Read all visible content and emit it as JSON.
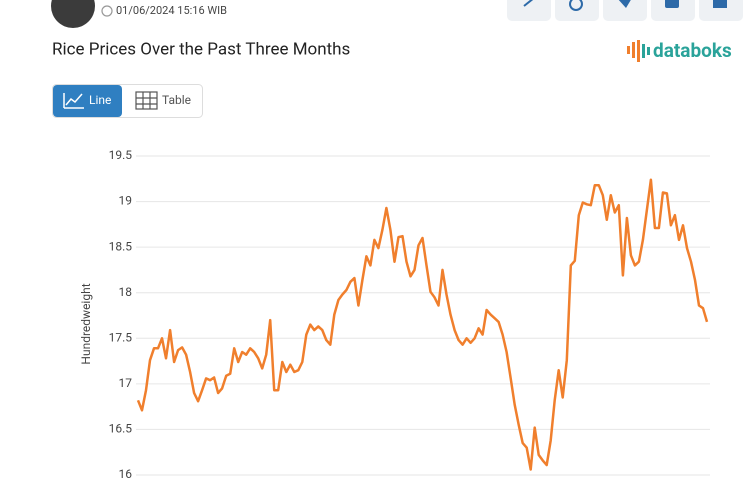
{
  "header": {
    "date": "01/06/2024 15:16 WIB"
  },
  "tabs": [
    "Line",
    "Table"
  ],
  "brand": "databoks",
  "chart_data": {
    "type": "line",
    "title": "Rice Prices Over the Past Three Months",
    "y_label": "Hundredweight",
    "color": "#f07f2d",
    "grid": true,
    "ylim": [
      16,
      19.5
    ],
    "yticks": [
      16,
      16.5,
      17,
      17.5,
      18,
      18.5,
      19,
      19.5
    ],
    "values": [
      16.82,
      16.71,
      16.93,
      17.26,
      17.39,
      17.39,
      17.5,
      17.28,
      17.59,
      17.24,
      17.37,
      17.4,
      17.32,
      17.13,
      16.9,
      16.81,
      16.93,
      17.06,
      17.04,
      17.07,
      16.9,
      16.95,
      17.09,
      17.11,
      17.39,
      17.24,
      17.35,
      17.32,
      17.39,
      17.35,
      17.28,
      17.17,
      17.32,
      17.7,
      16.93,
      16.93,
      17.24,
      17.13,
      17.21,
      17.13,
      17.15,
      17.24,
      17.54,
      17.65,
      17.59,
      17.63,
      17.59,
      17.48,
      17.43,
      17.76,
      17.92,
      17.98,
      18.03,
      18.12,
      18.16,
      17.86,
      18.14,
      18.4,
      18.3,
      18.58,
      18.49,
      18.69,
      18.93,
      18.69,
      18.34,
      18.61,
      18.62,
      18.34,
      18.18,
      18.25,
      18.52,
      18.6,
      18.3,
      18.01,
      17.95,
      17.86,
      18.25,
      17.98,
      17.76,
      17.59,
      17.48,
      17.43,
      17.5,
      17.45,
      17.5,
      17.61,
      17.54,
      17.81,
      17.76,
      17.72,
      17.68,
      17.54,
      17.35,
      17.06,
      16.77,
      16.55,
      16.35,
      16.3,
      16.06,
      16.52,
      16.22,
      16.16,
      16.11,
      16.38,
      16.82,
      17.15,
      16.85,
      17.26,
      18.3,
      18.35,
      18.85,
      18.99,
      18.97,
      18.96,
      19.18,
      19.18,
      19.07,
      18.8,
      19.07,
      18.88,
      18.96,
      18.19,
      18.82,
      18.41,
      18.3,
      18.34,
      18.58,
      18.91,
      19.24,
      18.71,
      18.71,
      19.1,
      19.09,
      18.74,
      18.85,
      18.58,
      18.74,
      18.49,
      18.34,
      18.14,
      17.86,
      17.83,
      17.68
    ]
  }
}
